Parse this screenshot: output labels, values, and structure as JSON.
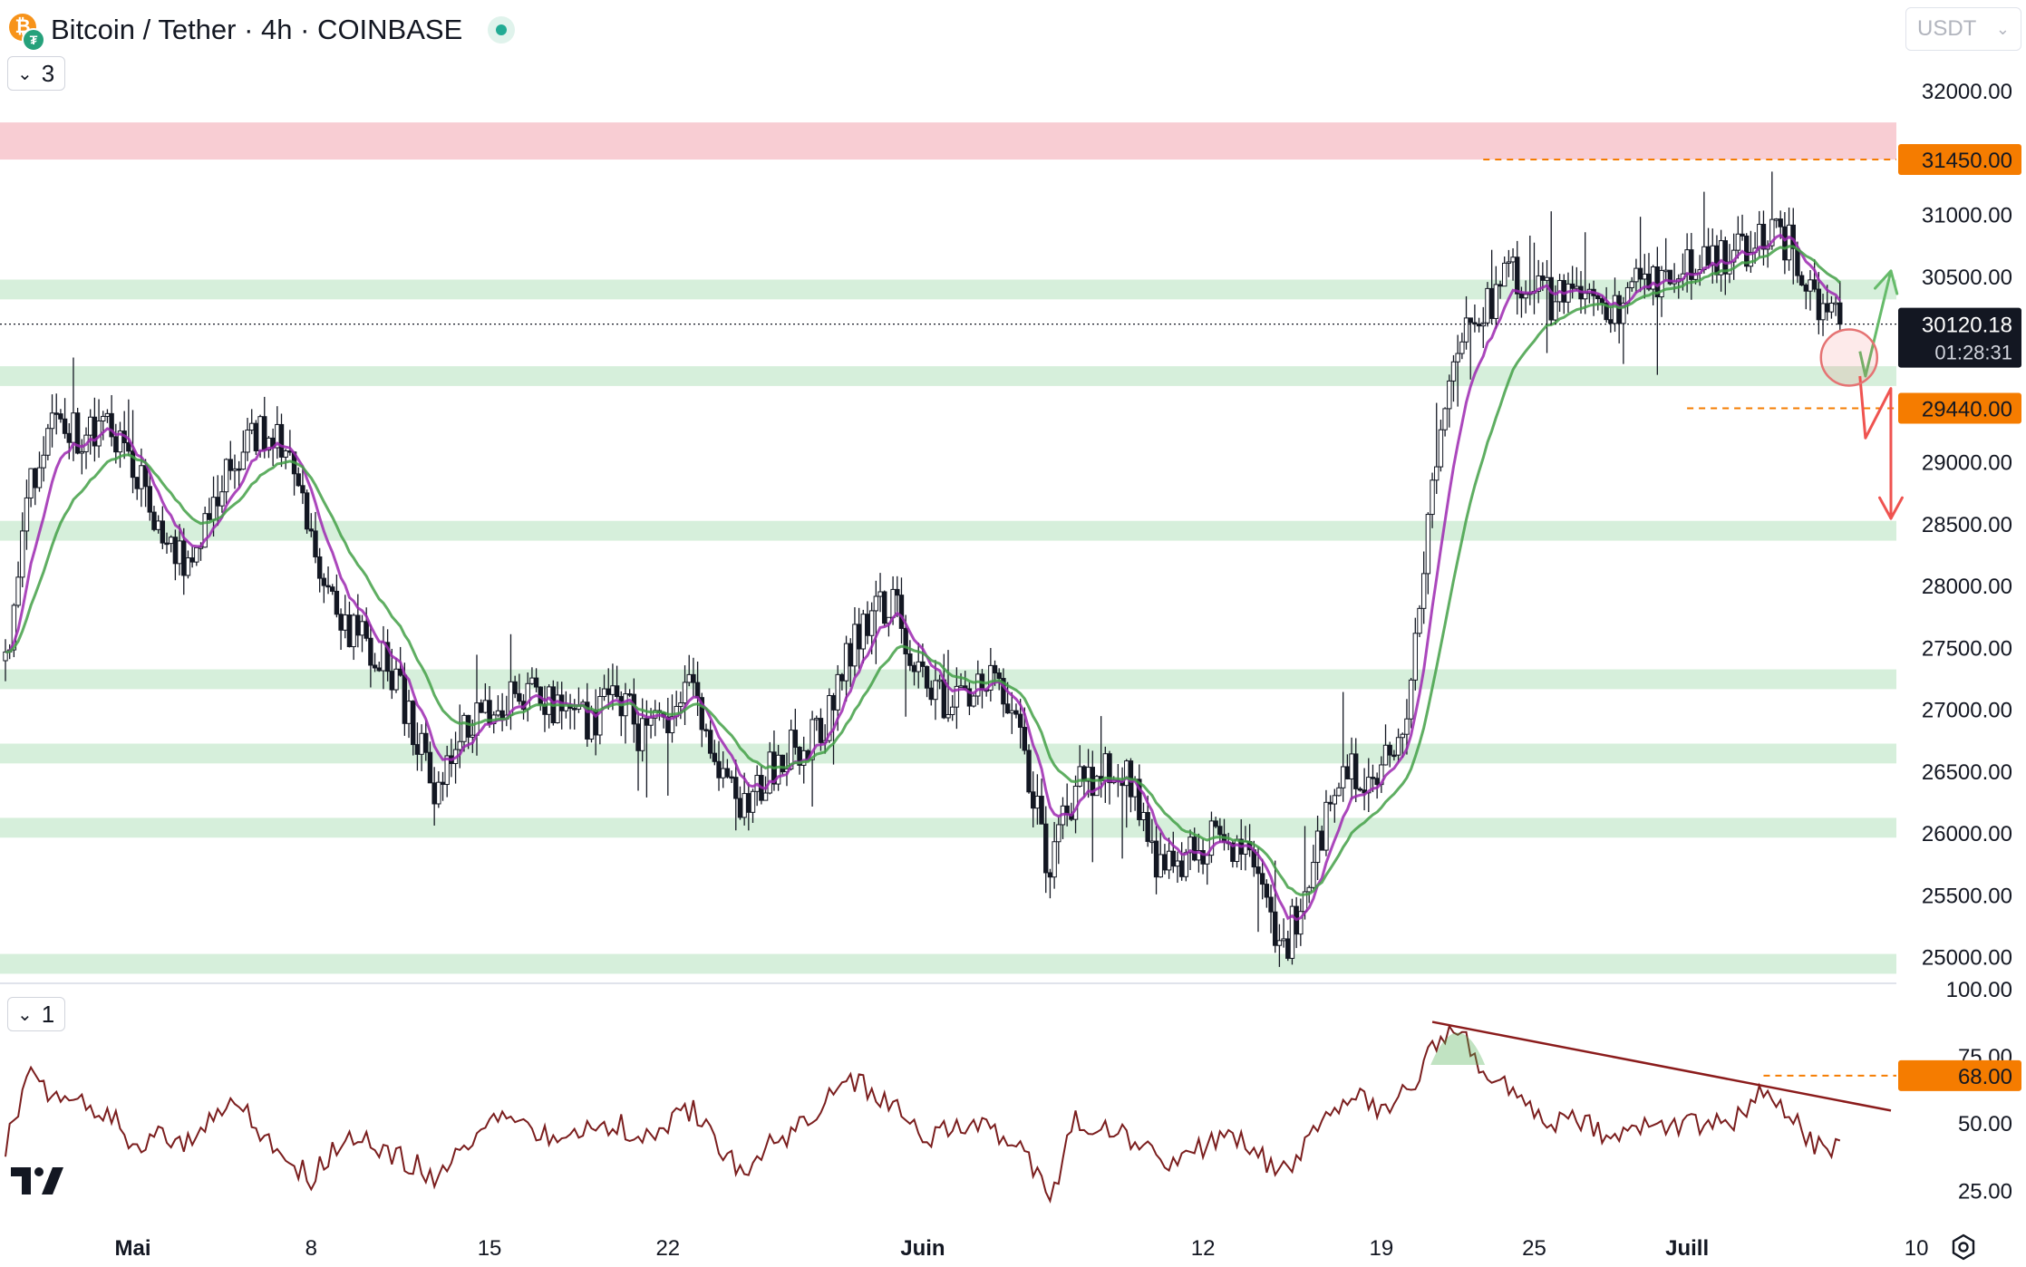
{
  "header": {
    "symbol_title": "Bitcoin / Tether · 4h · COINBASE",
    "currency": "USDT",
    "main_pane_indicator_count": "3",
    "rsi_pane_indicator_count": "1"
  },
  "chart_data": [
    {
      "type": "candlestick",
      "symbol": "BTCUSDT",
      "timeframe": "4h",
      "ylim": [
        24800,
        32300
      ],
      "y_ticks": [
        32000,
        31000,
        30500,
        29000,
        28500,
        28000,
        27500,
        27000,
        26500,
        26000,
        25500,
        25000
      ],
      "x_ticks": [
        {
          "date": "2023-05-01",
          "label": "Mai"
        },
        {
          "date": "2023-05-08",
          "label": "8"
        },
        {
          "date": "2023-05-15",
          "label": "15"
        },
        {
          "date": "2023-05-22",
          "label": "22"
        },
        {
          "date": "2023-06-01",
          "label": "Juin"
        },
        {
          "date": "2023-06-12",
          "label": "12"
        },
        {
          "date": "2023-06-19",
          "label": "19"
        },
        {
          "date": "2023-06-25",
          "label": "25"
        },
        {
          "date": "2023-07-01",
          "label": "Juill"
        },
        {
          "date": "2023-07-10",
          "label": "10"
        }
      ],
      "xlim": [
        "2023-04-26",
        "2023-07-09"
      ],
      "close_path": [
        [
          "2023-04-26",
          27400
        ],
        [
          "2023-04-27",
          28800
        ],
        [
          "2023-04-28",
          29400
        ],
        [
          "2023-04-29",
          29200
        ],
        [
          "2023-04-30",
          29300
        ],
        [
          "2023-05-01",
          29000
        ],
        [
          "2023-05-02",
          28500
        ],
        [
          "2023-05-03",
          28200
        ],
        [
          "2023-05-04",
          28600
        ],
        [
          "2023-05-05",
          29000
        ],
        [
          "2023-05-06",
          29300
        ],
        [
          "2023-05-07",
          29100
        ],
        [
          "2023-05-08",
          28400
        ],
        [
          "2023-05-09",
          27700
        ],
        [
          "2023-05-10",
          27600
        ],
        [
          "2023-05-11",
          27400
        ],
        [
          "2023-05-12",
          26900
        ],
        [
          "2023-05-13",
          26300
        ],
        [
          "2023-05-14",
          26800
        ],
        [
          "2023-05-15",
          27000
        ],
        [
          "2023-05-16",
          27200
        ],
        [
          "2023-05-17",
          27100
        ],
        [
          "2023-05-18",
          26900
        ],
        [
          "2023-05-19",
          26900
        ],
        [
          "2023-05-20",
          27100
        ],
        [
          "2023-05-21",
          26800
        ],
        [
          "2023-05-22",
          26900
        ],
        [
          "2023-05-23",
          27200
        ],
        [
          "2023-05-24",
          26600
        ],
        [
          "2023-05-25",
          26200
        ],
        [
          "2023-05-26",
          26500
        ],
        [
          "2023-05-27",
          26700
        ],
        [
          "2023-05-28",
          26800
        ],
        [
          "2023-05-29",
          27400
        ],
        [
          "2023-05-30",
          27800
        ],
        [
          "2023-05-31",
          27800
        ],
        [
          "2023-06-01",
          27200
        ],
        [
          "2023-06-02",
          27000
        ],
        [
          "2023-06-03",
          27200
        ],
        [
          "2023-06-04",
          27200
        ],
        [
          "2023-06-05",
          26600
        ],
        [
          "2023-06-06",
          25700
        ],
        [
          "2023-06-07",
          26400
        ],
        [
          "2023-06-08",
          26500
        ],
        [
          "2023-06-09",
          26500
        ],
        [
          "2023-06-10",
          25800
        ],
        [
          "2023-06-11",
          25700
        ],
        [
          "2023-06-12",
          25900
        ],
        [
          "2023-06-13",
          26000
        ],
        [
          "2023-06-14",
          25700
        ],
        [
          "2023-06-15",
          25000
        ],
        [
          "2023-06-16",
          25500
        ],
        [
          "2023-06-17",
          26300
        ],
        [
          "2023-06-18",
          26500
        ],
        [
          "2023-06-19",
          26500
        ],
        [
          "2023-06-20",
          27000
        ],
        [
          "2023-06-21",
          28800
        ],
        [
          "2023-06-22",
          30000
        ],
        [
          "2023-06-23",
          30200
        ],
        [
          "2023-06-24",
          30500
        ],
        [
          "2023-06-25",
          30400
        ],
        [
          "2023-06-26",
          30300
        ],
        [
          "2023-06-27",
          30400
        ],
        [
          "2023-06-28",
          30200
        ],
        [
          "2023-06-29",
          30400
        ],
        [
          "2023-06-30",
          30500
        ],
        [
          "2023-07-01",
          30550
        ],
        [
          "2023-07-02",
          30600
        ],
        [
          "2023-07-03",
          30700
        ],
        [
          "2023-07-04",
          30900
        ],
        [
          "2023-07-05",
          30800
        ],
        [
          "2023-07-06",
          30300
        ],
        [
          "2023-07-07",
          30120
        ]
      ],
      "last_price": 30120.18,
      "countdown": "01:28:31",
      "moving_averages": [
        {
          "color": "#9c27b0",
          "style": "fast"
        },
        {
          "color": "#43a047",
          "style": "slow"
        }
      ],
      "resistance_zone": {
        "from": 31450,
        "to": 31750,
        "color": "#f8cdd3"
      },
      "support_zones": [
        30400,
        29700,
        28450,
        27250,
        26650,
        26050,
        24950
      ],
      "levels": [
        {
          "value": 31450,
          "label": "31450.00",
          "color": "#f57c00"
        },
        {
          "value": 29440,
          "label": "29440.00",
          "color": "#f57c00"
        }
      ],
      "scenarios": [
        {
          "color": "#66bb6a",
          "path": [
            [
              "2023-07-07",
              29900
            ],
            [
              "2023-07-08",
              29700
            ],
            [
              "2023-07-09",
              30550
            ]
          ]
        },
        {
          "color": "#ef5350",
          "path": [
            [
              "2023-07-07",
              29700
            ],
            [
              "2023-07-08",
              29200
            ],
            [
              "2023-07-08",
              29600
            ],
            [
              "2023-07-09",
              28550
            ]
          ]
        }
      ]
    },
    {
      "type": "line",
      "indicator": "RSI",
      "ylim": [
        18,
        100
      ],
      "y_ticks": [
        100,
        75,
        50,
        25
      ],
      "level": {
        "value": 68,
        "label": "68.00",
        "color": "#f57c00"
      },
      "trendline": [
        [
          "2023-06-21",
          88
        ],
        [
          "2023-07-09",
          55
        ]
      ],
      "points": [
        [
          "2023-04-26",
          42
        ],
        [
          "2023-04-27",
          70
        ],
        [
          "2023-04-28",
          58
        ],
        [
          "2023-04-29",
          57
        ],
        [
          "2023-04-30",
          55
        ],
        [
          "2023-05-01",
          42
        ],
        [
          "2023-05-02",
          45
        ],
        [
          "2023-05-03",
          40
        ],
        [
          "2023-05-04",
          52
        ],
        [
          "2023-05-05",
          60
        ],
        [
          "2023-05-06",
          48
        ],
        [
          "2023-05-07",
          38
        ],
        [
          "2023-05-08",
          30
        ],
        [
          "2023-05-09",
          42
        ],
        [
          "2023-05-10",
          45
        ],
        [
          "2023-05-11",
          40
        ],
        [
          "2023-05-12",
          35
        ],
        [
          "2023-05-13",
          30
        ],
        [
          "2023-05-14",
          42
        ],
        [
          "2023-05-15",
          50
        ],
        [
          "2023-05-16",
          52
        ],
        [
          "2023-05-17",
          45
        ],
        [
          "2023-05-18",
          44
        ],
        [
          "2023-05-19",
          48
        ],
        [
          "2023-05-20",
          50
        ],
        [
          "2023-05-21",
          45
        ],
        [
          "2023-05-22",
          50
        ],
        [
          "2023-05-23",
          55
        ],
        [
          "2023-05-24",
          40
        ],
        [
          "2023-05-25",
          32
        ],
        [
          "2023-05-26",
          42
        ],
        [
          "2023-05-27",
          48
        ],
        [
          "2023-05-28",
          55
        ],
        [
          "2023-05-29",
          68
        ],
        [
          "2023-05-30",
          62
        ],
        [
          "2023-05-31",
          55
        ],
        [
          "2023-06-01",
          45
        ],
        [
          "2023-06-02",
          48
        ],
        [
          "2023-06-03",
          52
        ],
        [
          "2023-06-04",
          45
        ],
        [
          "2023-06-05",
          38
        ],
        [
          "2023-06-06",
          22
        ],
        [
          "2023-06-07",
          52
        ],
        [
          "2023-06-08",
          48
        ],
        [
          "2023-06-09",
          45
        ],
        [
          "2023-06-10",
          40
        ],
        [
          "2023-06-11",
          35
        ],
        [
          "2023-06-12",
          42
        ],
        [
          "2023-06-13",
          45
        ],
        [
          "2023-06-14",
          42
        ],
        [
          "2023-06-15",
          30
        ],
        [
          "2023-06-16",
          42
        ],
        [
          "2023-06-17",
          55
        ],
        [
          "2023-06-18",
          60
        ],
        [
          "2023-06-19",
          55
        ],
        [
          "2023-06-20",
          62
        ],
        [
          "2023-06-21",
          78
        ],
        [
          "2023-06-22",
          86
        ],
        [
          "2023-06-23",
          70
        ],
        [
          "2023-06-24",
          62
        ],
        [
          "2023-06-25",
          55
        ],
        [
          "2023-06-26",
          50
        ],
        [
          "2023-06-27",
          52
        ],
        [
          "2023-06-28",
          45
        ],
        [
          "2023-06-29",
          50
        ],
        [
          "2023-06-30",
          48
        ],
        [
          "2023-07-01",
          50
        ],
        [
          "2023-07-02",
          49
        ],
        [
          "2023-07-03",
          52
        ],
        [
          "2023-07-04",
          64
        ],
        [
          "2023-07-05",
          55
        ],
        [
          "2023-07-06",
          42
        ],
        [
          "2023-07-07",
          40
        ]
      ]
    }
  ]
}
